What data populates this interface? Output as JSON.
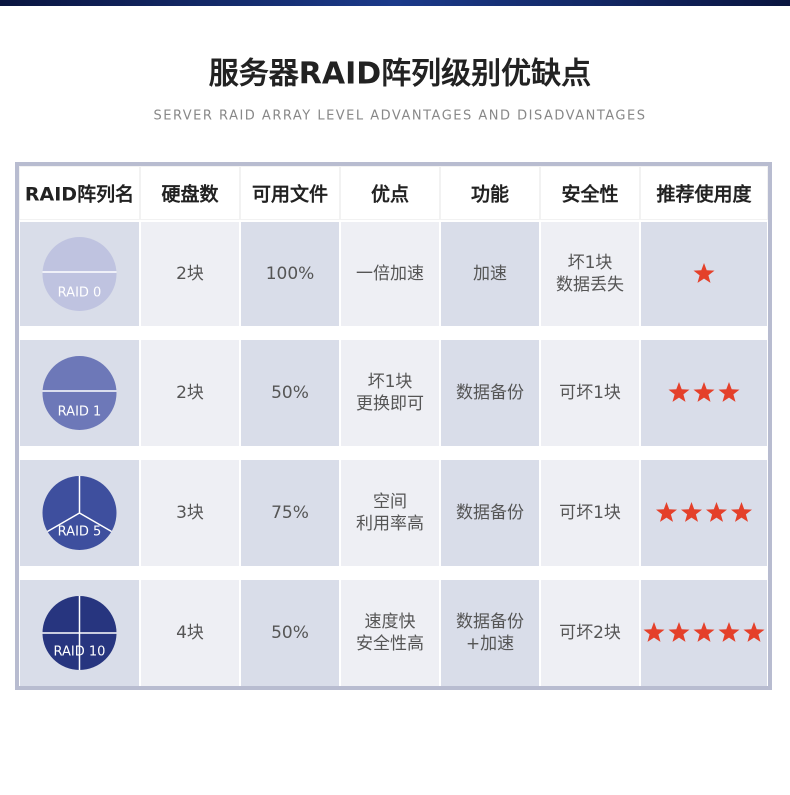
{
  "header": {
    "title": "服务器RAID阵列级别优缺点",
    "subtitle": "SERVER RAID ARRAY LEVEL ADVANTAGES AND DISADVANTAGES"
  },
  "table": {
    "columns": [
      "RAID阵列名",
      "硬盘数",
      "可用文件",
      "优点",
      "功能",
      "安全性",
      "推荐使用度"
    ],
    "rows": [
      {
        "raid": "RAID 0",
        "cells": [
          [
            "2块"
          ],
          [
            "100%"
          ],
          [
            "一倍加速"
          ],
          [
            "加速"
          ],
          [
            "坏1块",
            "数据丢失"
          ]
        ],
        "stars": 1
      },
      {
        "raid": "RAID 1",
        "cells": [
          [
            "2块"
          ],
          [
            "50%"
          ],
          [
            "坏1块",
            "更换即可"
          ],
          [
            "数据备份"
          ],
          [
            "可坏1块"
          ]
        ],
        "stars": 3
      },
      {
        "raid": "RAID 5",
        "cells": [
          [
            "3块"
          ],
          [
            "75%"
          ],
          [
            "空间",
            "利用率高"
          ],
          [
            "数据备份"
          ],
          [
            "可坏1块"
          ]
        ],
        "stars": 4
      },
      {
        "raid": "RAID 10",
        "cells": [
          [
            "4块"
          ],
          [
            "50%"
          ],
          [
            "速度快",
            "安全性高"
          ],
          [
            "数据备份",
            "+加速"
          ],
          [
            "可坏2块"
          ]
        ],
        "stars": 5
      }
    ]
  }
}
